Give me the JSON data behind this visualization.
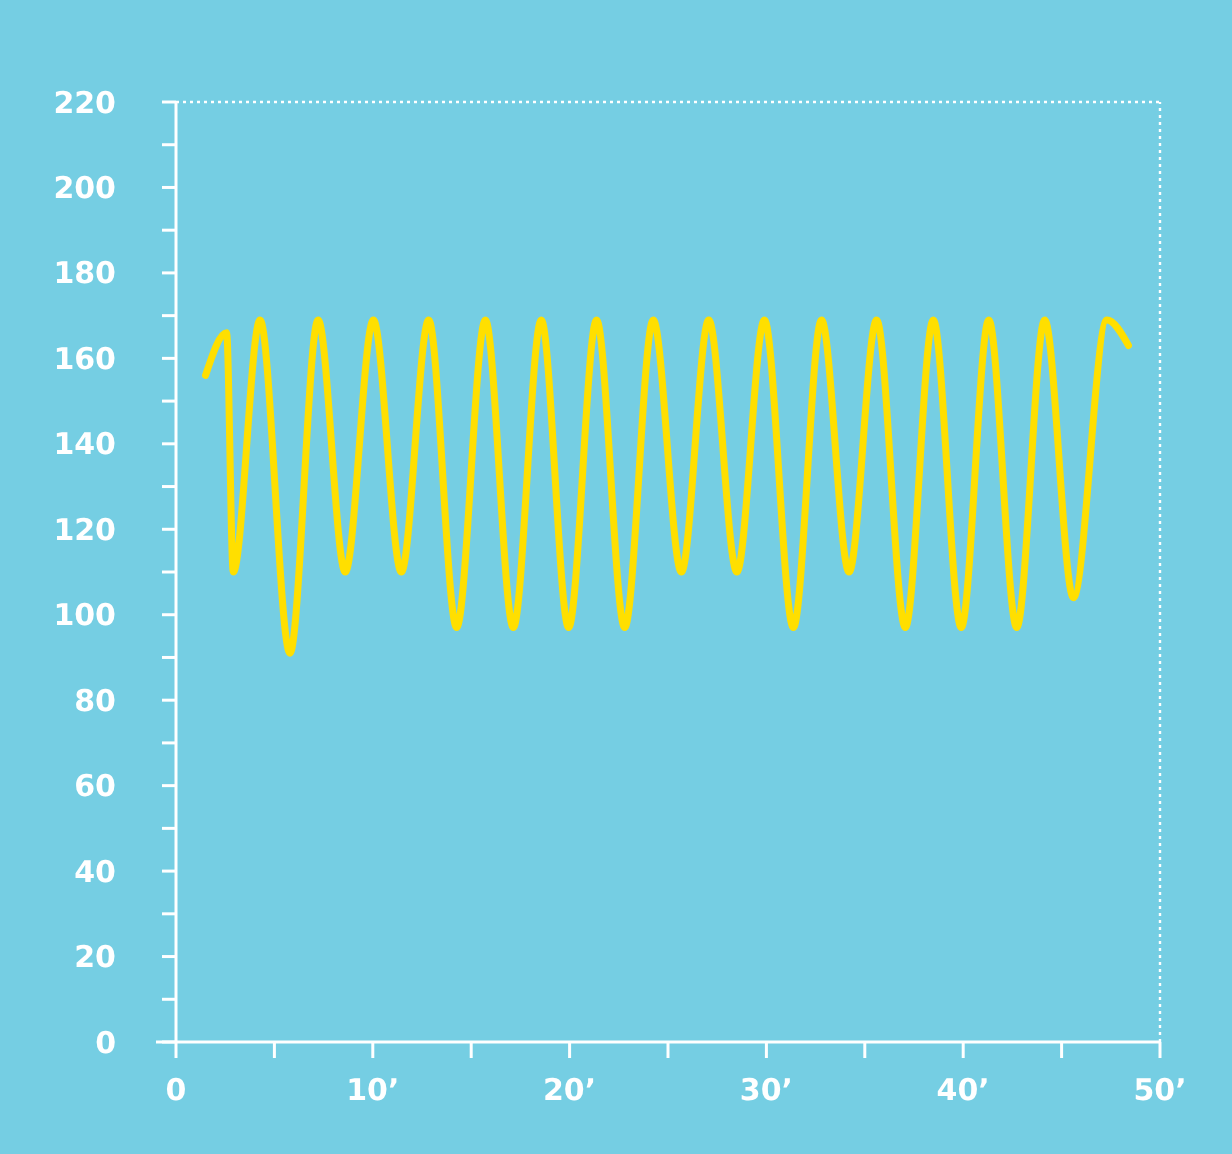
{
  "chart_data": {
    "type": "line",
    "x": [
      1.5,
      2.57,
      2.91,
      4.27,
      5.79,
      7.22,
      8.6,
      10.03,
      11.45,
      12.84,
      14.26,
      15.72,
      17.14,
      18.56,
      19.95,
      21.37,
      22.8,
      24.25,
      25.68,
      27.07,
      28.5,
      29.9,
      31.37,
      32.8,
      34.2,
      35.6,
      37.06,
      38.48,
      39.9,
      41.3,
      42.72,
      44.14,
      45.6,
      47.3,
      48.4
    ],
    "series": [
      {
        "color": "#ffdf00",
        "values": [
          156,
          166,
          110,
          169,
          91,
          169,
          110,
          169,
          110,
          169,
          97,
          169,
          97,
          169,
          97,
          169,
          97,
          169,
          110,
          169,
          110,
          169,
          97,
          169,
          110,
          169,
          97,
          169,
          97,
          169,
          97,
          169,
          104,
          169,
          163
        ]
      }
    ],
    "xlim": [
      0,
      50
    ],
    "xticks": [
      0,
      {
        "value": 5,
        "label": null
      },
      {
        "value": 10,
        "label": "10’"
      },
      {
        "value": 15,
        "label": null
      },
      {
        "value": 20,
        "label": "20’"
      },
      {
        "value": 25,
        "label": null
      },
      {
        "value": 30,
        "label": "30’"
      },
      {
        "value": 35,
        "label": null
      },
      {
        "value": 40,
        "label": "40’"
      },
      {
        "value": 45,
        "label": null
      },
      {
        "value": 50,
        "label": "50’"
      }
    ],
    "ylim": [
      0,
      220
    ],
    "yticks": [
      0,
      {
        "value": 10,
        "label": null
      },
      20,
      {
        "value": 30,
        "label": null
      },
      40,
      {
        "value": 50,
        "label": null
      },
      60,
      {
        "value": 70,
        "label": null
      },
      80,
      {
        "value": 90,
        "label": null
      },
      100,
      {
        "value": 110,
        "label": null
      },
      120,
      {
        "value": 130,
        "label": null
      },
      140,
      {
        "value": 150,
        "label": null
      },
      160,
      {
        "value": 170,
        "label": null
      },
      180,
      {
        "value": 190,
        "label": null
      },
      200,
      {
        "value": 210,
        "label": null
      },
      220
    ],
    "grid": false,
    "marker": "none",
    "line_style": "solid"
  }
}
